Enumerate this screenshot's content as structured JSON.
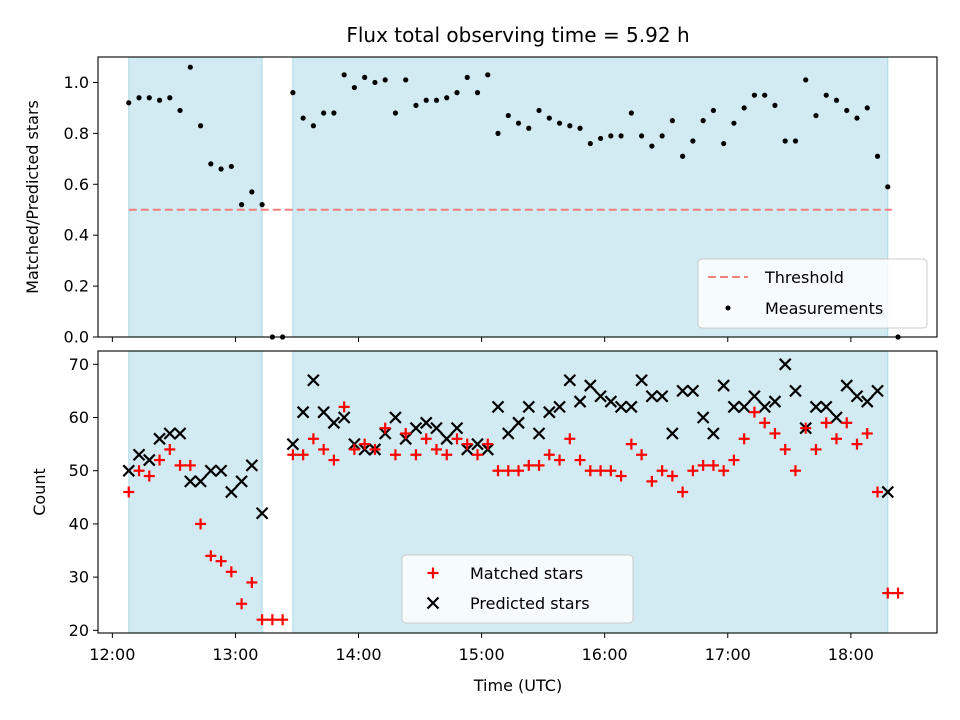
{
  "chart_data": [
    {
      "type": "scatter",
      "title": "Flux total observing time = 5.92 h",
      "xlabel": "",
      "ylabel": "Matched/Predicted stars",
      "ylim": [
        0,
        1.1
      ],
      "yticks": [
        "0.0",
        "0.2",
        "0.4",
        "0.6",
        "0.8",
        "1.0"
      ],
      "threshold": 0.5,
      "threshold_span": [
        "12:08",
        "18:20"
      ],
      "threshold_color": "#f08080",
      "point_color": "#000000",
      "legend": {
        "position": "lower right",
        "threshold_label": "Threshold",
        "measurements_label": "Measurements"
      },
      "shaded_intervals": [
        [
          "12:08",
          "13:13"
        ],
        [
          "13:28",
          "18:18"
        ]
      ],
      "shade_color": "#add8e6",
      "series": [
        {
          "name": "Measurements",
          "x": [
            "12:08",
            "12:13",
            "12:18",
            "12:23",
            "12:28",
            "12:33",
            "12:38",
            "12:43",
            "12:48",
            "12:53",
            "12:58",
            "13:03",
            "13:08",
            "13:13",
            "13:18",
            "13:23",
            "13:28",
            "13:33",
            "13:38",
            "13:43",
            "13:48",
            "13:53",
            "13:58",
            "14:03",
            "14:08",
            "14:13",
            "14:18",
            "14:23",
            "14:28",
            "14:33",
            "14:38",
            "14:43",
            "14:48",
            "14:53",
            "14:58",
            "15:03",
            "15:08",
            "15:13",
            "15:18",
            "15:23",
            "15:28",
            "15:33",
            "15:38",
            "15:43",
            "15:48",
            "15:53",
            "15:58",
            "16:03",
            "16:08",
            "16:13",
            "16:18",
            "16:23",
            "16:28",
            "16:33",
            "16:38",
            "16:43",
            "16:48",
            "16:53",
            "16:58",
            "17:03",
            "17:08",
            "17:13",
            "17:18",
            "17:23",
            "17:28",
            "17:33",
            "17:38",
            "17:43",
            "17:48",
            "17:53",
            "17:58",
            "18:03",
            "18:08",
            "18:13",
            "18:18",
            "18:23"
          ],
          "y": [
            0.92,
            0.94,
            0.94,
            0.93,
            0.94,
            0.89,
            1.06,
            0.83,
            0.68,
            0.66,
            0.67,
            0.52,
            0.57,
            0.52,
            0.0,
            0.0,
            0.96,
            0.86,
            0.83,
            0.88,
            0.88,
            1.03,
            0.98,
            1.02,
            1.0,
            1.01,
            0.88,
            1.01,
            0.91,
            0.93,
            0.93,
            0.94,
            0.96,
            1.02,
            0.96,
            1.03,
            0.8,
            0.87,
            0.84,
            0.82,
            0.89,
            0.86,
            0.84,
            0.83,
            0.82,
            0.76,
            0.78,
            0.79,
            0.79,
            0.88,
            0.79,
            0.75,
            0.79,
            0.85,
            0.71,
            0.77,
            0.85,
            0.89,
            0.76,
            0.84,
            0.9,
            0.95,
            0.95,
            0.91,
            0.77,
            0.77,
            1.01,
            0.87,
            0.95,
            0.93,
            0.89,
            0.86,
            0.9,
            0.71,
            0.59,
            0.0
          ]
        }
      ]
    },
    {
      "type": "scatter",
      "xlabel": "Time (UTC)",
      "ylabel": "Count",
      "ylim": [
        19.5,
        72.5
      ],
      "yticks": [
        "20",
        "30",
        "40",
        "50",
        "60",
        "70"
      ],
      "xticks": [
        "12:00",
        "13:00",
        "14:00",
        "15:00",
        "16:00",
        "17:00",
        "18:00"
      ],
      "legend": {
        "position": "lower center",
        "matched_label": "Matched stars",
        "predicted_label": "Predicted stars"
      },
      "shaded_intervals": [
        [
          "12:08",
          "13:13"
        ],
        [
          "13:28",
          "18:18"
        ]
      ],
      "shade_color": "#add8e6",
      "series": [
        {
          "name": "Matched stars",
          "color": "#ff0000",
          "marker": "+",
          "x": [
            "12:08",
            "12:13",
            "12:18",
            "12:23",
            "12:28",
            "12:33",
            "12:38",
            "12:43",
            "12:48",
            "12:53",
            "12:58",
            "13:03",
            "13:08",
            "13:13",
            "13:18",
            "13:23",
            "13:28",
            "13:33",
            "13:38",
            "13:43",
            "13:48",
            "13:53",
            "13:58",
            "14:03",
            "14:08",
            "14:13",
            "14:18",
            "14:23",
            "14:28",
            "14:33",
            "14:38",
            "14:43",
            "14:48",
            "14:53",
            "14:58",
            "15:03",
            "15:08",
            "15:13",
            "15:18",
            "15:23",
            "15:28",
            "15:33",
            "15:38",
            "15:43",
            "15:48",
            "15:53",
            "15:58",
            "16:03",
            "16:08",
            "16:13",
            "16:18",
            "16:23",
            "16:28",
            "16:33",
            "16:38",
            "16:43",
            "16:48",
            "16:53",
            "16:58",
            "17:03",
            "17:08",
            "17:13",
            "17:18",
            "17:23",
            "17:28",
            "17:33",
            "17:38",
            "17:43",
            "17:48",
            "17:53",
            "17:58",
            "18:03",
            "18:08",
            "18:13",
            "18:18",
            "18:23"
          ],
          "y": [
            46,
            50,
            49,
            52,
            54,
            51,
            51,
            40,
            34,
            33,
            31,
            25,
            29,
            22,
            22,
            22,
            53,
            53,
            56,
            54,
            52,
            62,
            54,
            55,
            54,
            58,
            53,
            57,
            53,
            56,
            54,
            53,
            56,
            55,
            53,
            55,
            50,
            50,
            50,
            51,
            51,
            53,
            52,
            56,
            52,
            50,
            50,
            50,
            49,
            55,
            53,
            48,
            50,
            49,
            46,
            50,
            51,
            51,
            50,
            52,
            56,
            61,
            59,
            57,
            54,
            50,
            58,
            54,
            59,
            56,
            59,
            55,
            57,
            46,
            27,
            27
          ]
        },
        {
          "name": "Predicted stars",
          "color": "#000000",
          "marker": "x",
          "x": [
            "12:08",
            "12:13",
            "12:18",
            "12:23",
            "12:28",
            "12:33",
            "12:38",
            "12:43",
            "12:48",
            "12:53",
            "12:58",
            "13:03",
            "13:08",
            "13:13",
            "13:28",
            "13:33",
            "13:38",
            "13:43",
            "13:48",
            "13:53",
            "13:58",
            "14:03",
            "14:08",
            "14:13",
            "14:18",
            "14:23",
            "14:28",
            "14:33",
            "14:38",
            "14:43",
            "14:48",
            "14:53",
            "14:58",
            "15:03",
            "15:08",
            "15:13",
            "15:18",
            "15:23",
            "15:28",
            "15:33",
            "15:38",
            "15:43",
            "15:48",
            "15:53",
            "15:58",
            "16:03",
            "16:08",
            "16:13",
            "16:18",
            "16:23",
            "16:28",
            "16:33",
            "16:38",
            "16:43",
            "16:48",
            "16:53",
            "16:58",
            "17:03",
            "17:08",
            "17:13",
            "17:18",
            "17:23",
            "17:28",
            "17:33",
            "17:38",
            "17:43",
            "17:48",
            "17:53",
            "17:58",
            "18:03",
            "18:08",
            "18:13",
            "18:18"
          ],
          "y": [
            50,
            53,
            52,
            56,
            57,
            57,
            48,
            48,
            50,
            50,
            46,
            48,
            51,
            42,
            55,
            61,
            67,
            61,
            59,
            60,
            55,
            54,
            54,
            57,
            60,
            56,
            58,
            59,
            58,
            56,
            58,
            54,
            55,
            54,
            62,
            57,
            59,
            62,
            57,
            61,
            62,
            67,
            63,
            66,
            64,
            63,
            62,
            62,
            67,
            64,
            64,
            57,
            65,
            65,
            60,
            57,
            66,
            62,
            62,
            64,
            62,
            63,
            70,
            65,
            58,
            62,
            62,
            60,
            66,
            64,
            63,
            65,
            46
          ]
        }
      ]
    }
  ]
}
